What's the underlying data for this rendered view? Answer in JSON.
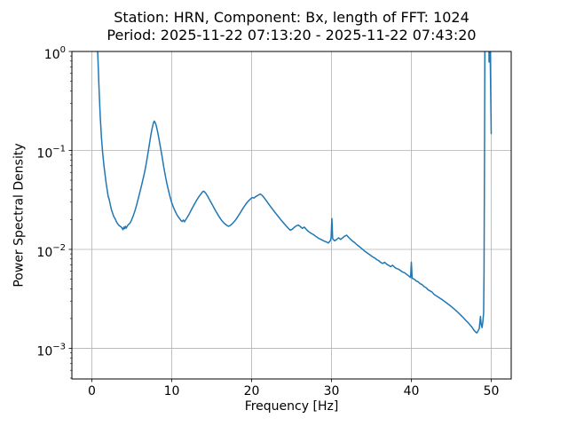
{
  "chart_data": {
    "type": "line",
    "title": "Station: HRN, Component: Bx, length of FFT: 1024\nPeriod: 2025-11-22 07:13:20 - 2025-11-22 07:43:20",
    "title_line1": "Station: HRN, Component: Bx, length of FFT: 1024",
    "title_line2": "Period: 2025-11-22 07:13:20 - 2025-11-22 07:43:20",
    "xlabel": "Frequency [Hz]",
    "ylabel": "Power Spectral Density",
    "xscale": "linear",
    "yscale": "log",
    "xlim": [
      -2.5,
      52.5
    ],
    "ylim": [
      0.00049,
      1.0
    ],
    "x_ticks": [
      0,
      10,
      20,
      30,
      40,
      50
    ],
    "y_ticks": [
      1,
      0.1,
      0.01,
      0.001
    ],
    "y_tick_exponents": [
      0,
      -1,
      -2,
      -3
    ],
    "grid": true,
    "legend": "none",
    "colors": {
      "line": "#1f77b4",
      "grid": "#b0b0b0",
      "spine": "#000000",
      "text": "#000000",
      "background": "#ffffff"
    },
    "series": [
      {
        "name": "PSD",
        "points": [
          [
            0.25,
            8
          ],
          [
            0.45,
            3.5
          ],
          [
            0.62,
            1.6
          ],
          [
            0.75,
            0.9
          ],
          [
            0.9,
            0.42
          ],
          [
            1.05,
            0.22
          ],
          [
            1.2,
            0.135
          ],
          [
            1.35,
            0.095
          ],
          [
            1.5,
            0.072
          ],
          [
            1.65,
            0.057
          ],
          [
            1.8,
            0.046
          ],
          [
            1.95,
            0.0385
          ],
          [
            2.05,
            0.034
          ],
          [
            2.15,
            0.0325
          ],
          [
            2.3,
            0.0285
          ],
          [
            2.45,
            0.0252
          ],
          [
            2.6,
            0.0232
          ],
          [
            2.75,
            0.0214
          ],
          [
            2.9,
            0.0205
          ],
          [
            3.05,
            0.0192
          ],
          [
            3.2,
            0.0183
          ],
          [
            3.35,
            0.0176
          ],
          [
            3.5,
            0.0172
          ],
          [
            3.65,
            0.0169
          ],
          [
            3.8,
            0.0163
          ],
          [
            3.9,
            0.0158
          ],
          [
            4.0,
            0.0168
          ],
          [
            4.1,
            0.0162
          ],
          [
            4.2,
            0.0171
          ],
          [
            4.3,
            0.0164
          ],
          [
            4.45,
            0.0173
          ],
          [
            4.6,
            0.0179
          ],
          [
            4.75,
            0.0183
          ],
          [
            4.9,
            0.0192
          ],
          [
            5.05,
            0.0205
          ],
          [
            5.2,
            0.0221
          ],
          [
            5.35,
            0.0239
          ],
          [
            5.5,
            0.0262
          ],
          [
            5.65,
            0.029
          ],
          [
            5.8,
            0.0323
          ],
          [
            6.0,
            0.0375
          ],
          [
            6.2,
            0.0435
          ],
          [
            6.4,
            0.051
          ],
          [
            6.6,
            0.06
          ],
          [
            6.8,
            0.073
          ],
          [
            7.0,
            0.091
          ],
          [
            7.2,
            0.115
          ],
          [
            7.4,
            0.145
          ],
          [
            7.55,
            0.168
          ],
          [
            7.7,
            0.188
          ],
          [
            7.8,
            0.198
          ],
          [
            7.9,
            0.193
          ],
          [
            8.0,
            0.185
          ],
          [
            8.1,
            0.173
          ],
          [
            8.25,
            0.152
          ],
          [
            8.4,
            0.131
          ],
          [
            8.6,
            0.106
          ],
          [
            8.8,
            0.086
          ],
          [
            9.0,
            0.068
          ],
          [
            9.2,
            0.0555
          ],
          [
            9.4,
            0.046
          ],
          [
            9.6,
            0.0392
          ],
          [
            9.8,
            0.0338
          ],
          [
            10.0,
            0.0296
          ],
          [
            10.2,
            0.0268
          ],
          [
            10.4,
            0.0246
          ],
          [
            10.6,
            0.0228
          ],
          [
            10.8,
            0.0214
          ],
          [
            11.0,
            0.0204
          ],
          [
            11.15,
            0.0196
          ],
          [
            11.3,
            0.0191
          ],
          [
            11.45,
            0.0198
          ],
          [
            11.6,
            0.019
          ],
          [
            11.75,
            0.0199
          ],
          [
            11.9,
            0.0208
          ],
          [
            12.1,
            0.0221
          ],
          [
            12.3,
            0.0237
          ],
          [
            12.5,
            0.0255
          ],
          [
            12.7,
            0.0273
          ],
          [
            12.9,
            0.0292
          ],
          [
            13.1,
            0.0312
          ],
          [
            13.3,
            0.0331
          ],
          [
            13.5,
            0.035
          ],
          [
            13.7,
            0.0366
          ],
          [
            13.85,
            0.0381
          ],
          [
            14.0,
            0.0387
          ],
          [
            14.15,
            0.0378
          ],
          [
            14.3,
            0.0365
          ],
          [
            14.5,
            0.0343
          ],
          [
            14.7,
            0.0321
          ],
          [
            14.9,
            0.03
          ],
          [
            15.1,
            0.0281
          ],
          [
            15.3,
            0.0262
          ],
          [
            15.5,
            0.0245
          ],
          [
            15.7,
            0.023
          ],
          [
            15.9,
            0.0216
          ],
          [
            16.1,
            0.0204
          ],
          [
            16.3,
            0.0194
          ],
          [
            16.5,
            0.0186
          ],
          [
            16.7,
            0.018
          ],
          [
            16.9,
            0.0175
          ],
          [
            17.1,
            0.0171
          ],
          [
            17.3,
            0.0174
          ],
          [
            17.5,
            0.0179
          ],
          [
            17.7,
            0.0186
          ],
          [
            17.9,
            0.0194
          ],
          [
            18.1,
            0.0204
          ],
          [
            18.3,
            0.0216
          ],
          [
            18.5,
            0.0229
          ],
          [
            18.7,
            0.0243
          ],
          [
            18.9,
            0.0258
          ],
          [
            19.1,
            0.0273
          ],
          [
            19.3,
            0.0288
          ],
          [
            19.5,
            0.0302
          ],
          [
            19.7,
            0.0314
          ],
          [
            19.9,
            0.0325
          ],
          [
            20.1,
            0.0334
          ],
          [
            20.3,
            0.033
          ],
          [
            20.5,
            0.0341
          ],
          [
            20.7,
            0.0348
          ],
          [
            20.9,
            0.0356
          ],
          [
            21.1,
            0.0362
          ],
          [
            21.3,
            0.0352
          ],
          [
            21.5,
            0.0338
          ],
          [
            21.7,
            0.0322
          ],
          [
            21.9,
            0.0306
          ],
          [
            22.1,
            0.029
          ],
          [
            22.35,
            0.0272
          ],
          [
            22.6,
            0.0256
          ],
          [
            22.85,
            0.0241
          ],
          [
            23.1,
            0.0227
          ],
          [
            23.35,
            0.0214
          ],
          [
            23.6,
            0.0202
          ],
          [
            23.85,
            0.0191
          ],
          [
            24.1,
            0.0181
          ],
          [
            24.35,
            0.0172
          ],
          [
            24.6,
            0.0163
          ],
          [
            24.85,
            0.0156
          ],
          [
            25.1,
            0.016
          ],
          [
            25.35,
            0.0167
          ],
          [
            25.6,
            0.0173
          ],
          [
            25.85,
            0.0176
          ],
          [
            26.1,
            0.017
          ],
          [
            26.35,
            0.0163
          ],
          [
            26.6,
            0.0168
          ],
          [
            26.85,
            0.0159
          ],
          [
            27.1,
            0.0152
          ],
          [
            27.35,
            0.0147
          ],
          [
            27.6,
            0.0143
          ],
          [
            27.85,
            0.0139
          ],
          [
            28.1,
            0.0134
          ],
          [
            28.35,
            0.013
          ],
          [
            28.6,
            0.0127
          ],
          [
            28.85,
            0.0124
          ],
          [
            29.1,
            0.0121
          ],
          [
            29.35,
            0.0119
          ],
          [
            29.6,
            0.0116
          ],
          [
            29.85,
            0.0122
          ],
          [
            29.95,
            0.0131
          ],
          [
            30.05,
            0.0205
          ],
          [
            30.15,
            0.0128
          ],
          [
            30.4,
            0.0122
          ],
          [
            30.65,
            0.0126
          ],
          [
            30.9,
            0.0131
          ],
          [
            31.15,
            0.0126
          ],
          [
            31.4,
            0.0131
          ],
          [
            31.65,
            0.0136
          ],
          [
            31.9,
            0.0139
          ],
          [
            32.15,
            0.0132
          ],
          [
            32.4,
            0.0126
          ],
          [
            32.65,
            0.0121
          ],
          [
            32.9,
            0.0117
          ],
          [
            33.15,
            0.0112
          ],
          [
            33.4,
            0.0108
          ],
          [
            33.65,
            0.0104
          ],
          [
            33.9,
            0.01
          ],
          [
            34.15,
            0.0096
          ],
          [
            34.4,
            0.0093
          ],
          [
            34.65,
            0.009
          ],
          [
            34.9,
            0.0087
          ],
          [
            35.15,
            0.0084
          ],
          [
            35.4,
            0.0082
          ],
          [
            35.65,
            0.0079
          ],
          [
            35.9,
            0.0077
          ],
          [
            36.15,
            0.0074
          ],
          [
            36.4,
            0.0072
          ],
          [
            36.65,
            0.0074
          ],
          [
            36.9,
            0.0071
          ],
          [
            37.15,
            0.0069
          ],
          [
            37.4,
            0.0067
          ],
          [
            37.65,
            0.0069
          ],
          [
            37.9,
            0.0066
          ],
          [
            38.15,
            0.0064
          ],
          [
            38.4,
            0.0063
          ],
          [
            38.65,
            0.0061
          ],
          [
            38.9,
            0.0059
          ],
          [
            39.15,
            0.0058
          ],
          [
            39.4,
            0.0056
          ],
          [
            39.65,
            0.0054
          ],
          [
            39.9,
            0.0052
          ],
          [
            40.0,
            0.0074
          ],
          [
            40.1,
            0.0051
          ],
          [
            40.35,
            0.005
          ],
          [
            40.6,
            0.0048
          ],
          [
            40.85,
            0.0047
          ],
          [
            41.1,
            0.0045
          ],
          [
            41.35,
            0.0044
          ],
          [
            41.6,
            0.0042
          ],
          [
            41.85,
            0.0041
          ],
          [
            42.1,
            0.0039
          ],
          [
            42.35,
            0.0038
          ],
          [
            42.6,
            0.0037
          ],
          [
            42.85,
            0.0035
          ],
          [
            43.1,
            0.0034
          ],
          [
            43.35,
            0.0033
          ],
          [
            43.6,
            0.0032
          ],
          [
            43.85,
            0.0031
          ],
          [
            44.1,
            0.003
          ],
          [
            44.35,
            0.0029
          ],
          [
            44.6,
            0.0028
          ],
          [
            44.85,
            0.0027
          ],
          [
            45.1,
            0.0026
          ],
          [
            45.35,
            0.0025
          ],
          [
            45.6,
            0.0024
          ],
          [
            45.85,
            0.0023
          ],
          [
            46.1,
            0.0022
          ],
          [
            46.35,
            0.0021
          ],
          [
            46.6,
            0.002
          ],
          [
            46.85,
            0.0019
          ],
          [
            47.1,
            0.00182
          ],
          [
            47.35,
            0.00172
          ],
          [
            47.6,
            0.00163
          ],
          [
            47.85,
            0.00152
          ],
          [
            48.05,
            0.00146
          ],
          [
            48.2,
            0.00143
          ],
          [
            48.35,
            0.0015
          ],
          [
            48.5,
            0.00158
          ],
          [
            48.65,
            0.0021
          ],
          [
            48.75,
            0.00172
          ],
          [
            48.85,
            0.00162
          ],
          [
            48.95,
            0.00185
          ],
          [
            49.05,
            0.0023
          ],
          [
            49.1,
            0.006
          ],
          [
            49.15,
            0.06
          ],
          [
            49.2,
            0.9
          ],
          [
            49.25,
            3
          ],
          [
            49.68,
            3
          ],
          [
            49.73,
            0.78
          ],
          [
            49.77,
            1.8
          ],
          [
            49.8,
            3
          ],
          [
            49.83,
            2
          ],
          [
            49.88,
            0.8
          ],
          [
            49.93,
            0.4
          ],
          [
            50.0,
            0.148
          ]
        ]
      }
    ]
  }
}
